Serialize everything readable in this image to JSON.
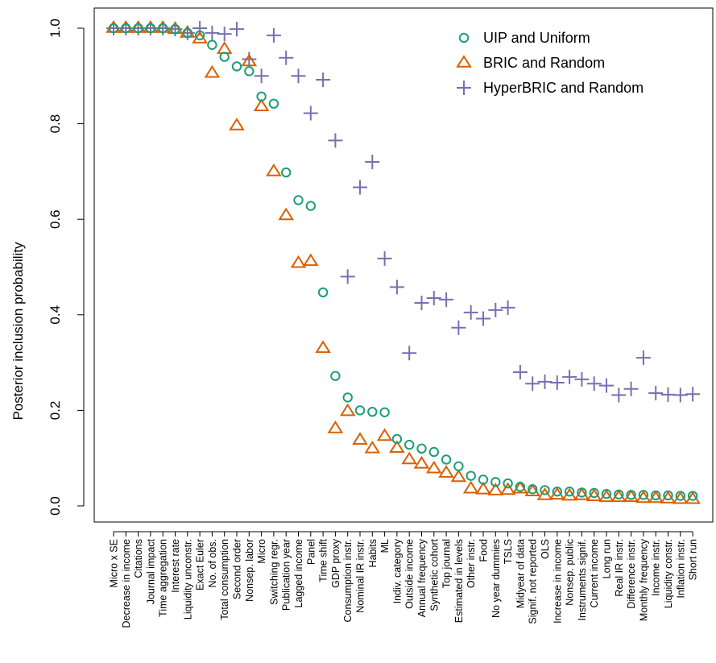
{
  "chart_data": {
    "type": "scatter",
    "ylabel": "Posterior inclusion probability",
    "ylim": [
      0,
      1
    ],
    "yticks": [
      0.0,
      0.2,
      0.4,
      0.6,
      0.8,
      1.0
    ],
    "ytick_labels": [
      "0.0",
      "0.2",
      "0.4",
      "0.6",
      "0.8",
      "1.0"
    ],
    "grid": false,
    "legend_position": "top-right",
    "categories": [
      "Micro x SE",
      "Decrease in income",
      "Citations",
      "Journal impact",
      "Time aggregation",
      "Interest rate",
      "Liquidity unconstr.",
      "Exact Euler",
      "No. of obs.",
      "Total consumption",
      "Second order",
      "Nonsep. labor",
      "Micro",
      "Switching regr.",
      "Publication year",
      "Lagged income",
      "Panel",
      "Time shift",
      "GDP proxy",
      "Consumption instr.",
      "Nominal IR instr.",
      "Habits",
      "ML",
      "Indiv. category",
      "Outside income",
      "Annual frequency",
      "Synthetic cohort",
      "Top journal",
      "Estimated in levels",
      "Other instr.",
      "Food",
      "No year dummies",
      "TSLS",
      "Midyear of data",
      "Signif. not reported",
      "OLS",
      "Increase in income",
      "Nonsep. public",
      "Instruments signif.",
      "Current income",
      "Long run",
      "Real IR instr.",
      "Difference instr.",
      "Monthly frequency",
      "Income instr.",
      "Liquidity constr.",
      "Inflation instr.",
      "Short run"
    ],
    "series": [
      {
        "name": "UIP and Uniform",
        "marker": "circle",
        "color": "#1b9e77",
        "values": [
          1.0,
          1.0,
          1.0,
          1.0,
          1.0,
          0.998,
          0.99,
          0.985,
          0.965,
          0.94,
          0.92,
          0.91,
          0.857,
          0.842,
          0.698,
          0.64,
          0.628,
          0.447,
          0.272,
          0.227,
          0.2,
          0.197,
          0.196,
          0.14,
          0.128,
          0.12,
          0.113,
          0.097,
          0.083,
          0.063,
          0.055,
          0.05,
          0.047,
          0.04,
          0.035,
          0.033,
          0.03,
          0.03,
          0.028,
          0.027,
          0.025,
          0.024,
          0.023,
          0.023,
          0.022,
          0.022,
          0.021,
          0.021
        ]
      },
      {
        "name": "BRIC and Random",
        "marker": "triangle",
        "color": "#d95f02",
        "values": [
          1.0,
          1.0,
          1.0,
          1.0,
          1.0,
          0.998,
          0.99,
          0.978,
          0.906,
          0.956,
          0.796,
          0.93,
          0.836,
          0.7,
          0.608,
          0.508,
          0.512,
          0.33,
          0.162,
          0.198,
          0.138,
          0.12,
          0.146,
          0.121,
          0.097,
          0.088,
          0.078,
          0.069,
          0.06,
          0.036,
          0.034,
          0.032,
          0.033,
          0.036,
          0.03,
          0.022,
          0.023,
          0.021,
          0.022,
          0.02,
          0.018,
          0.018,
          0.018,
          0.016,
          0.016,
          0.015,
          0.014,
          0.014
        ]
      },
      {
        "name": "HyperBRIC and Random",
        "marker": "plus",
        "color": "#7570b3",
        "values": [
          1.0,
          1.0,
          1.0,
          1.0,
          1.0,
          0.998,
          0.99,
          1.0,
          0.99,
          0.988,
          0.998,
          0.935,
          0.9,
          0.985,
          0.938,
          0.9,
          0.822,
          0.892,
          0.765,
          0.48,
          0.667,
          0.72,
          0.518,
          0.458,
          0.32,
          0.425,
          0.435,
          0.432,
          0.373,
          0.405,
          0.392,
          0.41,
          0.415,
          0.28,
          0.256,
          0.26,
          0.258,
          0.27,
          0.265,
          0.256,
          0.252,
          0.232,
          0.245,
          0.31,
          0.236,
          0.233,
          0.232,
          0.234
        ]
      }
    ]
  }
}
